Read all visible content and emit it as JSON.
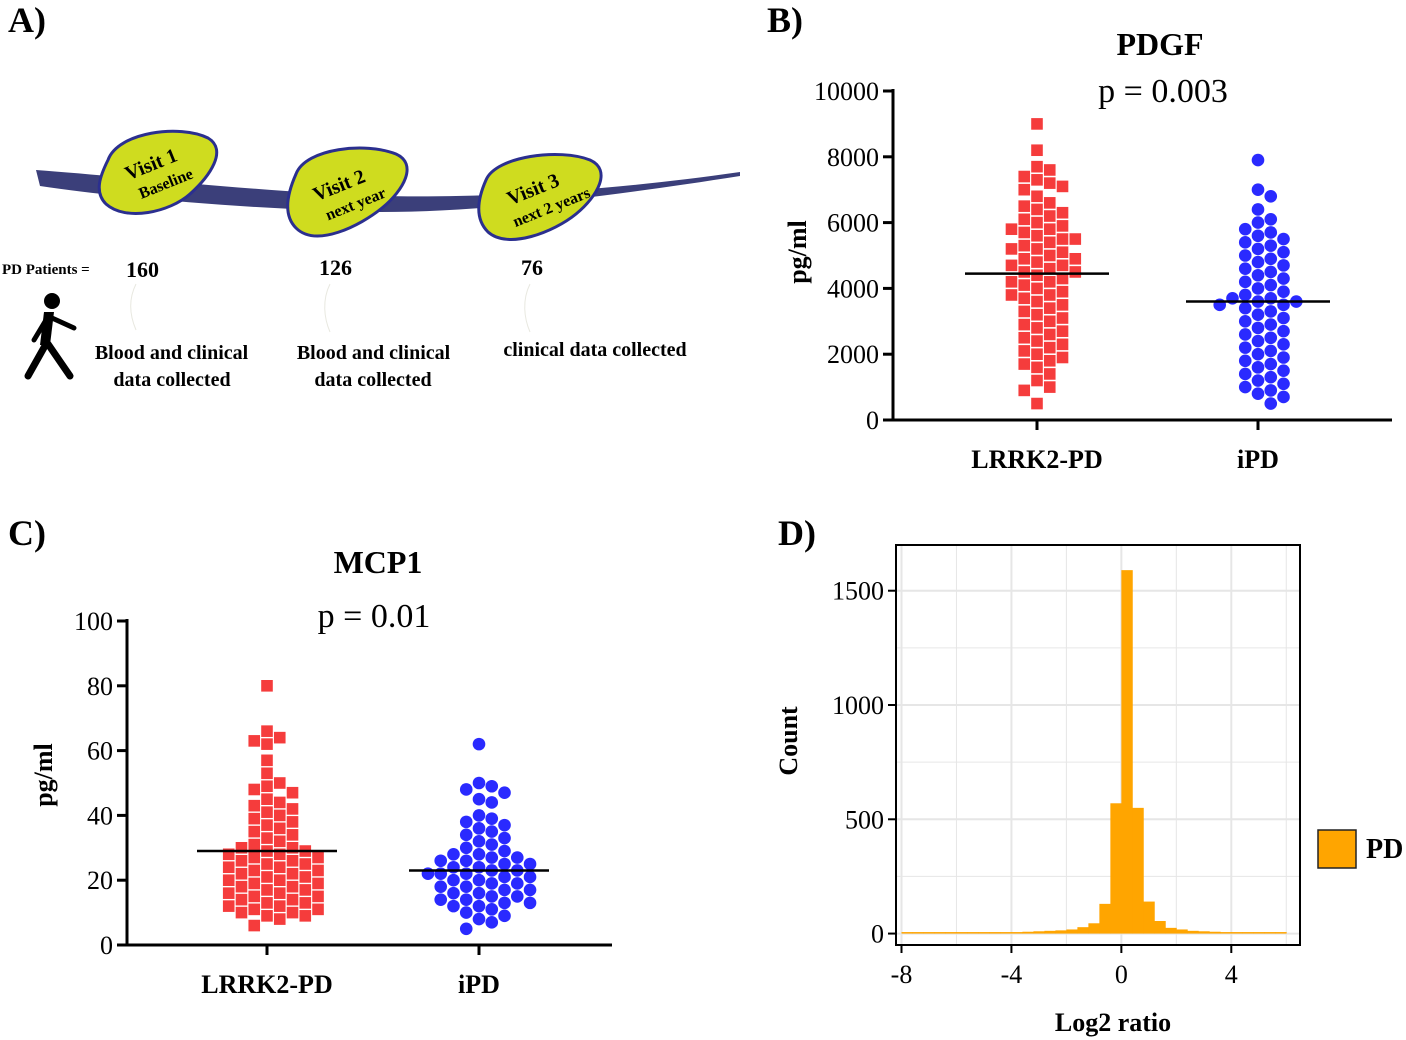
{
  "panel_labels": {
    "a": "A)",
    "b": "B)",
    "c": "C)",
    "d": "D)"
  },
  "timeline": {
    "patients_label": "PD Patients =",
    "visits": [
      {
        "title": "Visit 1",
        "subtitle": "Baseline",
        "count": "160",
        "note_lines": [
          "Blood and clinical",
          "data collected"
        ]
      },
      {
        "title": "Visit 2",
        "subtitle": "next year",
        "count": "126",
        "note_lines": [
          "Blood and clinical",
          "data collected"
        ]
      },
      {
        "title": "Visit 3",
        "subtitle": "next 2 years",
        "count": "76",
        "note_lines": [
          "clinical data collected"
        ]
      }
    ],
    "colors": {
      "road": "#3b3f7a",
      "bubble_fill": "#cfdc1f",
      "bubble_stroke": "#2b2f8f"
    }
  },
  "colors": {
    "lrrk2": "#f53c3c",
    "ipd": "#2a2aff",
    "hist": "#ffa500",
    "grid": "#e6e6e6"
  },
  "chart_data": [
    {
      "id": "B",
      "type": "scatter",
      "title": "PDGF",
      "subtitle": "p = 0.003",
      "ylabel": "pg/ml",
      "ylim": [
        0,
        10000
      ],
      "yticks": [
        0,
        2000,
        4000,
        6000,
        8000,
        10000
      ],
      "categories": [
        "LRRK2-PD",
        "iPD"
      ],
      "series": [
        {
          "name": "LRRK2-PD",
          "marker": "square",
          "mean": 4450,
          "values": [
            9000,
            8200,
            7700,
            7600,
            7400,
            7300,
            7200,
            7100,
            7000,
            6800,
            6600,
            6500,
            6400,
            6300,
            6200,
            6100,
            6000,
            5900,
            5800,
            5800,
            5700,
            5600,
            5500,
            5500,
            5400,
            5300,
            5200,
            5200,
            5100,
            5000,
            4900,
            4900,
            4800,
            4700,
            4700,
            4600,
            4500,
            4500,
            4400,
            4300,
            4200,
            4200,
            4100,
            4000,
            3900,
            3800,
            3800,
            3700,
            3600,
            3500,
            3400,
            3300,
            3200,
            3100,
            3000,
            2900,
            2800,
            2700,
            2600,
            2500,
            2400,
            2300,
            2200,
            2100,
            2000,
            1900,
            1800,
            1700,
            1600,
            1400,
            1200,
            1000,
            900,
            500
          ]
        },
        {
          "name": "iPD",
          "marker": "circle",
          "mean": 3600,
          "values": [
            7900,
            7000,
            6800,
            6400,
            6100,
            6000,
            5800,
            5700,
            5600,
            5500,
            5400,
            5300,
            5200,
            5100,
            5000,
            4900,
            4800,
            4700,
            4600,
            4500,
            4400,
            4300,
            4200,
            4100,
            4000,
            3900,
            3800,
            3700,
            3700,
            3600,
            3600,
            3500,
            3500,
            3400,
            3300,
            3200,
            3100,
            3000,
            2900,
            2800,
            2700,
            2600,
            2500,
            2400,
            2300,
            2200,
            2100,
            2000,
            1900,
            1800,
            1700,
            1600,
            1500,
            1400,
            1300,
            1200,
            1100,
            1000,
            900,
            800,
            700,
            500
          ]
        }
      ]
    },
    {
      "id": "C",
      "type": "scatter",
      "title": "MCP1",
      "subtitle": "p = 0.01",
      "ylabel": "pg/ml",
      "ylim": [
        0,
        100
      ],
      "yticks": [
        0,
        20,
        40,
        60,
        80,
        100
      ],
      "categories": [
        "LRRK2-PD",
        "iPD"
      ],
      "series": [
        {
          "name": "LRRK2-PD",
          "marker": "square",
          "mean": 29,
          "values": [
            80,
            66,
            64,
            63,
            62,
            57,
            53,
            50,
            49,
            48,
            47,
            45,
            44,
            43,
            42,
            41,
            40,
            39,
            38,
            37,
            36,
            35,
            34,
            33,
            32,
            31,
            30,
            30,
            29,
            29,
            28,
            28,
            27,
            27,
            26,
            26,
            25,
            25,
            24,
            24,
            23,
            23,
            22,
            22,
            21,
            21,
            20,
            20,
            19,
            19,
            18,
            18,
            17,
            17,
            16,
            16,
            15,
            15,
            14,
            14,
            13,
            13,
            12,
            12,
            11,
            11,
            10,
            10,
            9,
            9,
            8,
            6
          ]
        },
        {
          "name": "iPD",
          "marker": "circle",
          "mean": 23,
          "values": [
            62,
            50,
            49,
            48,
            47,
            45,
            44,
            40,
            39,
            38,
            37,
            36,
            35,
            34,
            33,
            32,
            31,
            30,
            29,
            28,
            28,
            27,
            27,
            26,
            26,
            25,
            25,
            24,
            24,
            23,
            23,
            22,
            22,
            22,
            21,
            21,
            20,
            20,
            19,
            19,
            18,
            18,
            17,
            17,
            16,
            16,
            15,
            15,
            14,
            14,
            13,
            13,
            12,
            12,
            11,
            10,
            9,
            8,
            7,
            5
          ]
        }
      ]
    },
    {
      "id": "D",
      "type": "bar",
      "subtype": "histogram",
      "xlabel": "Log2 ratio",
      "ylabel": "Count",
      "xlim": [
        -8.2,
        6.5
      ],
      "ylim": [
        -50,
        1700
      ],
      "xticks": [
        -8,
        -4,
        0,
        4
      ],
      "xtick_labels": [
        "-8",
        "-4",
        "0",
        "4"
      ],
      "yticks": [
        0,
        500,
        1000,
        1500
      ],
      "bin_width": 0.4,
      "bin_starts": [
        -8.0,
        -7.6,
        -7.2,
        -6.8,
        -6.4,
        -6.0,
        -5.6,
        -5.2,
        -4.8,
        -4.4,
        -4.0,
        -3.6,
        -3.2,
        -2.8,
        -2.4,
        -2.0,
        -1.6,
        -1.2,
        -0.8,
        -0.4,
        0.0,
        0.4,
        0.8,
        1.2,
        1.6,
        2.0,
        2.4,
        2.8,
        3.2,
        3.6,
        4.0,
        4.4,
        4.8,
        5.2,
        5.6
      ],
      "values": [
        2,
        2,
        2,
        2,
        3,
        3,
        3,
        4,
        5,
        5,
        6,
        8,
        10,
        12,
        14,
        18,
        28,
        45,
        130,
        570,
        1590,
        550,
        140,
        55,
        25,
        18,
        12,
        10,
        8,
        6,
        5,
        4,
        3,
        3,
        2
      ],
      "legend": {
        "label": "PD",
        "position": "right"
      }
    }
  ]
}
